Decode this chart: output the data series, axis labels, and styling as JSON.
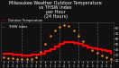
{
  "title": "Milwaukee Weather Outdoor Temperature\nvs THSW Index\nper Hour\n(24 Hours)",
  "title_fontsize": 3.5,
  "bg_color": "#111111",
  "plot_bg_color": "#111111",
  "grid_color": "#555555",
  "hours": [
    0,
    1,
    2,
    3,
    4,
    5,
    6,
    7,
    8,
    9,
    10,
    11,
    12,
    13,
    14,
    15,
    16,
    17,
    18,
    19,
    20,
    21,
    22,
    23
  ],
  "temp": [
    32,
    31,
    30,
    30,
    29,
    29,
    30,
    30,
    32,
    36,
    40,
    45,
    50,
    53,
    53,
    52,
    50,
    47,
    44,
    42,
    40,
    38,
    36,
    34
  ],
  "thsw": [
    25,
    24,
    23,
    22,
    21,
    21,
    22,
    25,
    35,
    50,
    65,
    75,
    82,
    85,
    83,
    75,
    65,
    55,
    45,
    38,
    33,
    28,
    25,
    22
  ],
  "temp_color": "#ff0000",
  "thsw_color": "#ff8800",
  "ylim": [
    18,
    90
  ],
  "xlim": [
    -0.5,
    23.5
  ],
  "yticks": [
    20,
    30,
    40,
    50,
    60,
    70,
    80
  ],
  "ytick_labels": [
    "20",
    "30",
    "40",
    "50",
    "60",
    "70",
    "80"
  ],
  "xtick_labels": [
    "1",
    "2",
    "3",
    "4",
    "5",
    "1",
    "2",
    "3",
    "4",
    "5",
    "1",
    "2",
    "3",
    "4",
    "5",
    "1",
    "2",
    "3",
    "4",
    "5",
    "1",
    "2",
    "3",
    "4"
  ],
  "vgrid_positions": [
    4,
    8,
    12,
    16,
    20
  ],
  "legend_temp": "Outdoor Temperature",
  "legend_thsw": "THSW Index"
}
